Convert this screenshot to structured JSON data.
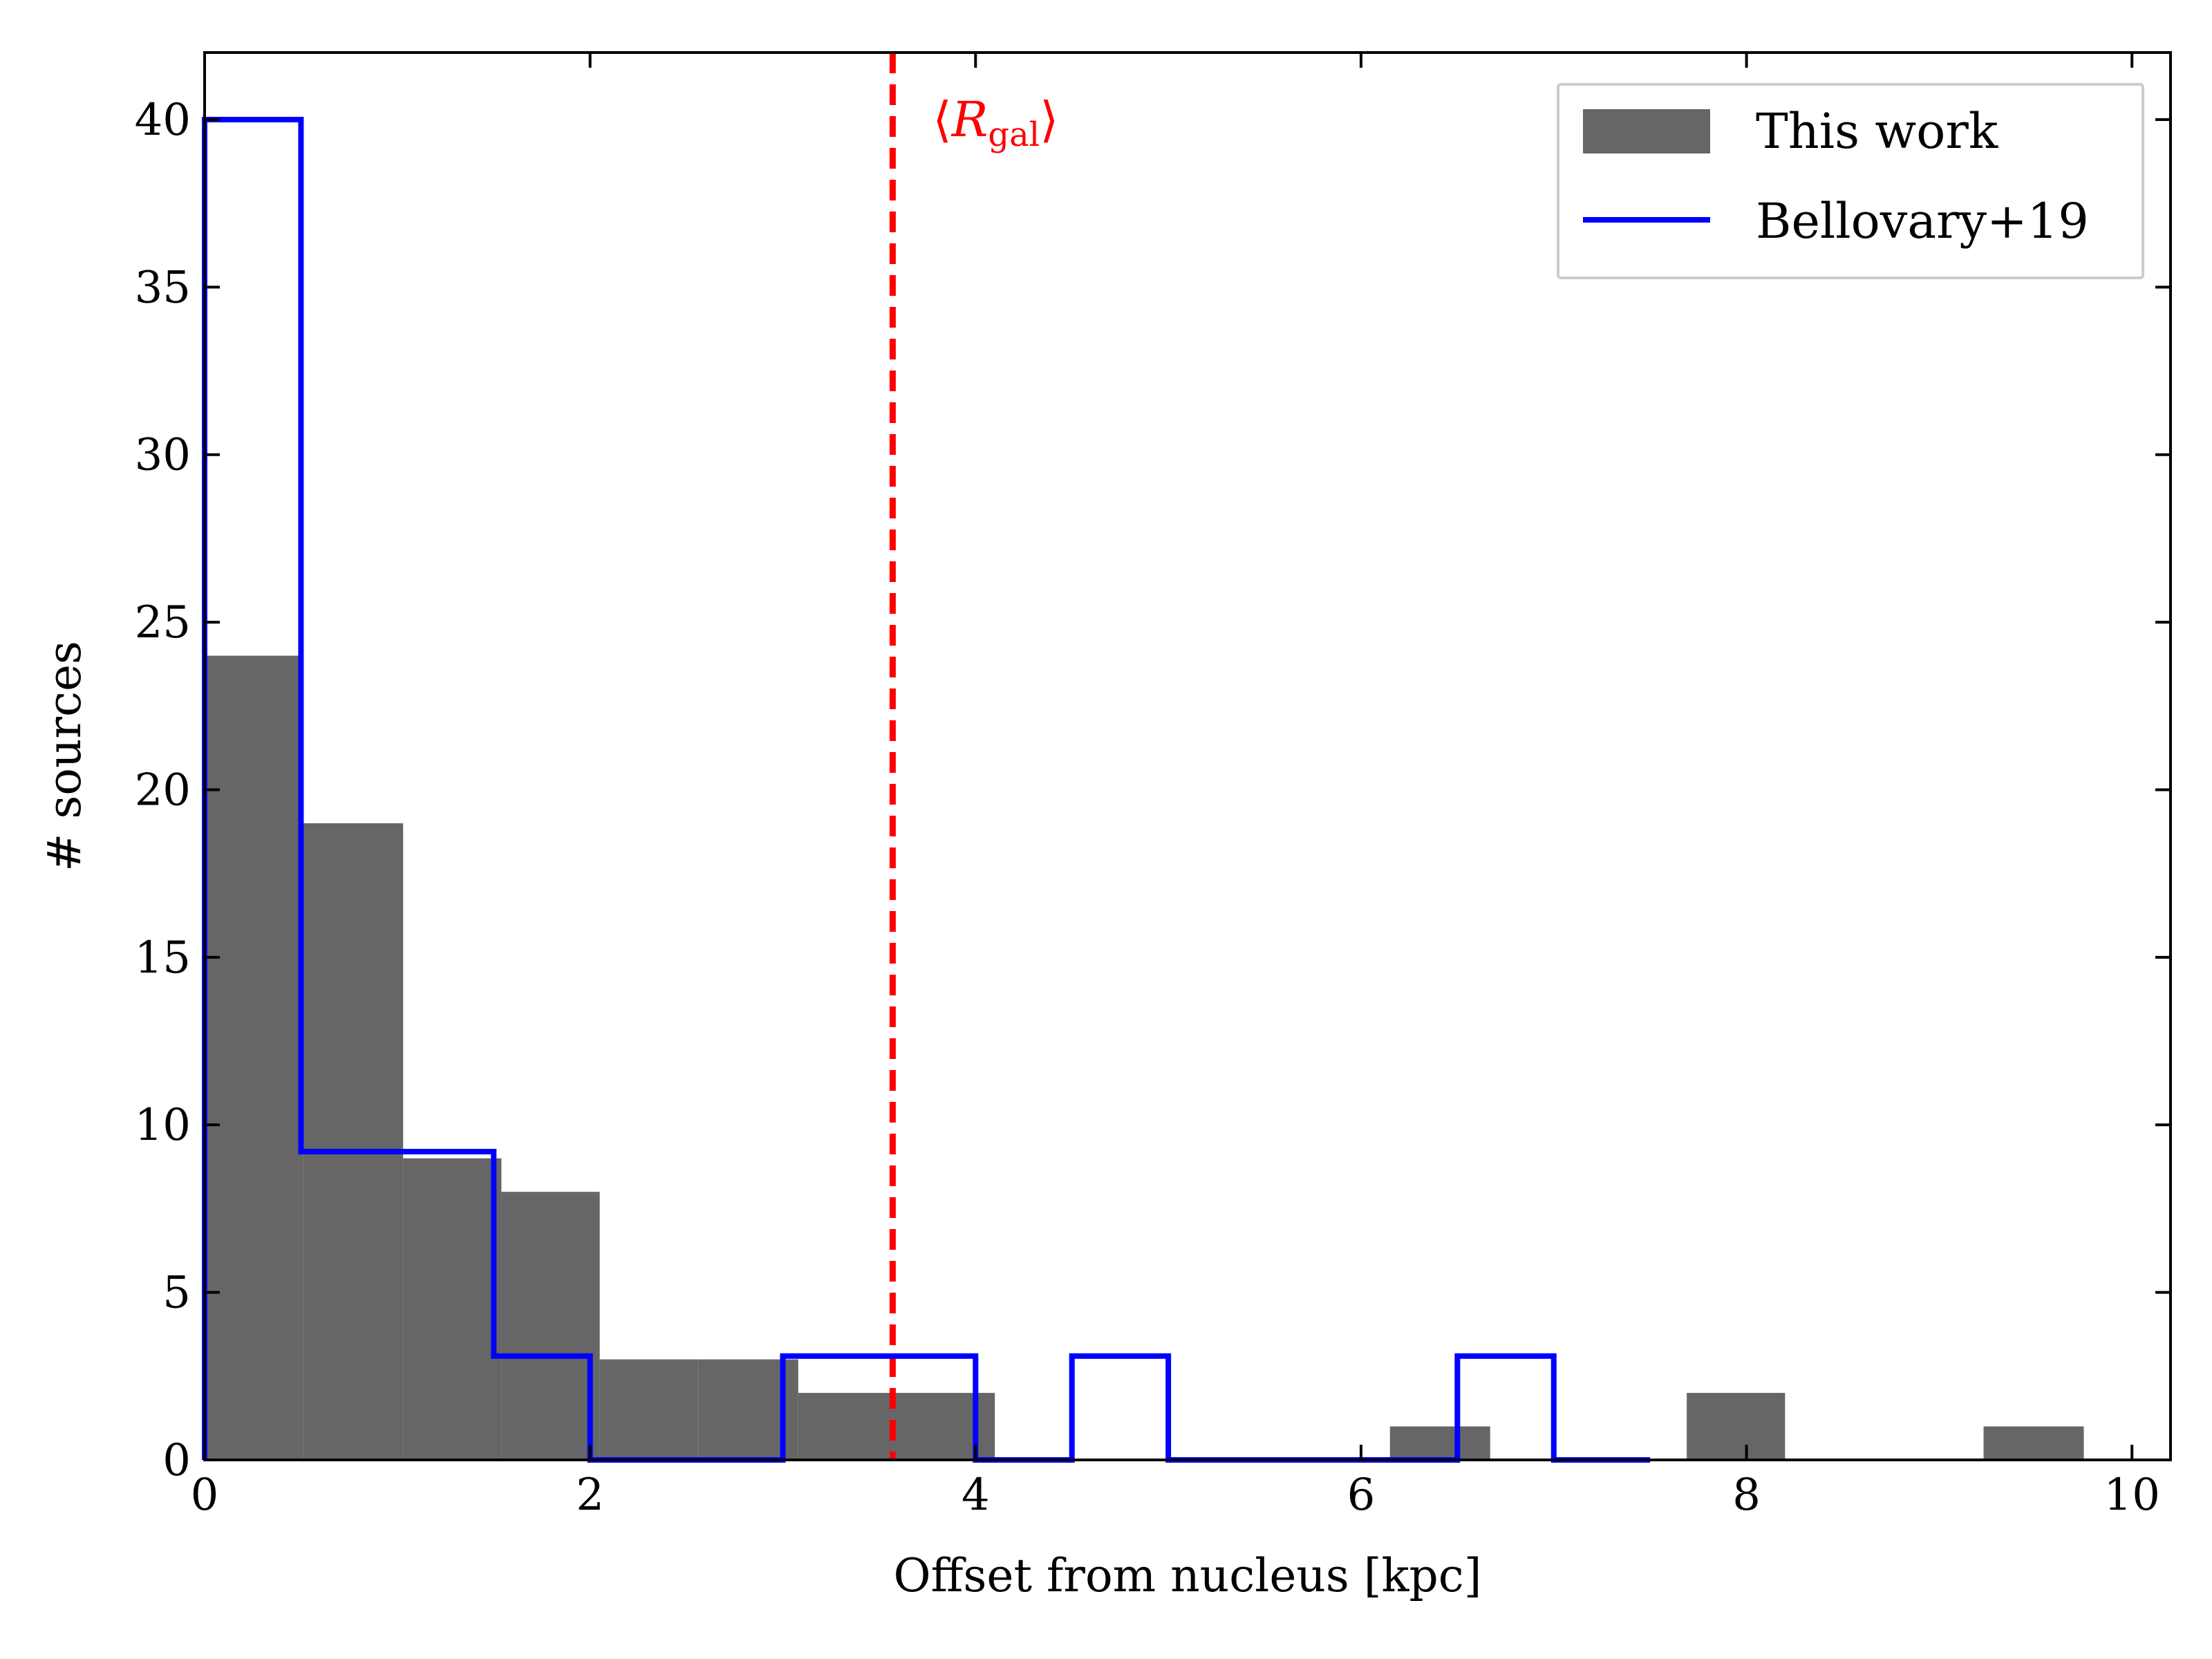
{
  "chart_data": {
    "type": "bar",
    "xlabel": "Offset from nucleus [kpc]",
    "ylabel": "# sources",
    "xlim": [
      0,
      10.2
    ],
    "ylim": [
      0,
      42
    ],
    "x_ticks": [
      0,
      2,
      4,
      6,
      8,
      10
    ],
    "y_ticks": [
      0,
      5,
      10,
      15,
      20,
      25,
      30,
      35,
      40
    ],
    "grid": false,
    "legend_position": "top-right",
    "series": [
      {
        "name": "This work",
        "style": "filled",
        "color": "#666666",
        "bins": [
          {
            "x0": 0.0,
            "x1": 0.51,
            "value": 24
          },
          {
            "x0": 0.51,
            "x1": 1.03,
            "value": 19
          },
          {
            "x0": 1.03,
            "x1": 1.54,
            "value": 9
          },
          {
            "x0": 1.54,
            "x1": 2.05,
            "value": 8
          },
          {
            "x0": 2.05,
            "x1": 2.56,
            "value": 3
          },
          {
            "x0": 2.56,
            "x1": 3.08,
            "value": 3
          },
          {
            "x0": 3.08,
            "x1": 3.59,
            "value": 2
          },
          {
            "x0": 3.59,
            "x1": 4.1,
            "value": 2
          },
          {
            "x0": 6.15,
            "x1": 6.67,
            "value": 1
          },
          {
            "x0": 7.69,
            "x1": 8.2,
            "value": 2
          },
          {
            "x0": 9.23,
            "x1": 9.75,
            "value": 1
          }
        ]
      },
      {
        "name": "Bellovary+19",
        "style": "step",
        "color": "#0000ff",
        "edges": [
          0.0,
          0.5,
          1.0,
          1.5,
          2.0,
          2.5,
          3.0,
          3.5,
          4.0,
          4.5,
          5.0,
          5.5,
          6.0,
          6.5,
          7.0,
          7.5
        ],
        "values": [
          40,
          9.2,
          9.2,
          3.1,
          0,
          0,
          3.1,
          3.1,
          0,
          3.1,
          0,
          0,
          0,
          3.1,
          0
        ]
      }
    ],
    "reference_line": {
      "x": 3.57,
      "color": "#ff0000",
      "style": "dashed",
      "label_symbol": "R",
      "label_sub": "gal",
      "label_open": "⟨",
      "label_close": "⟩"
    }
  }
}
